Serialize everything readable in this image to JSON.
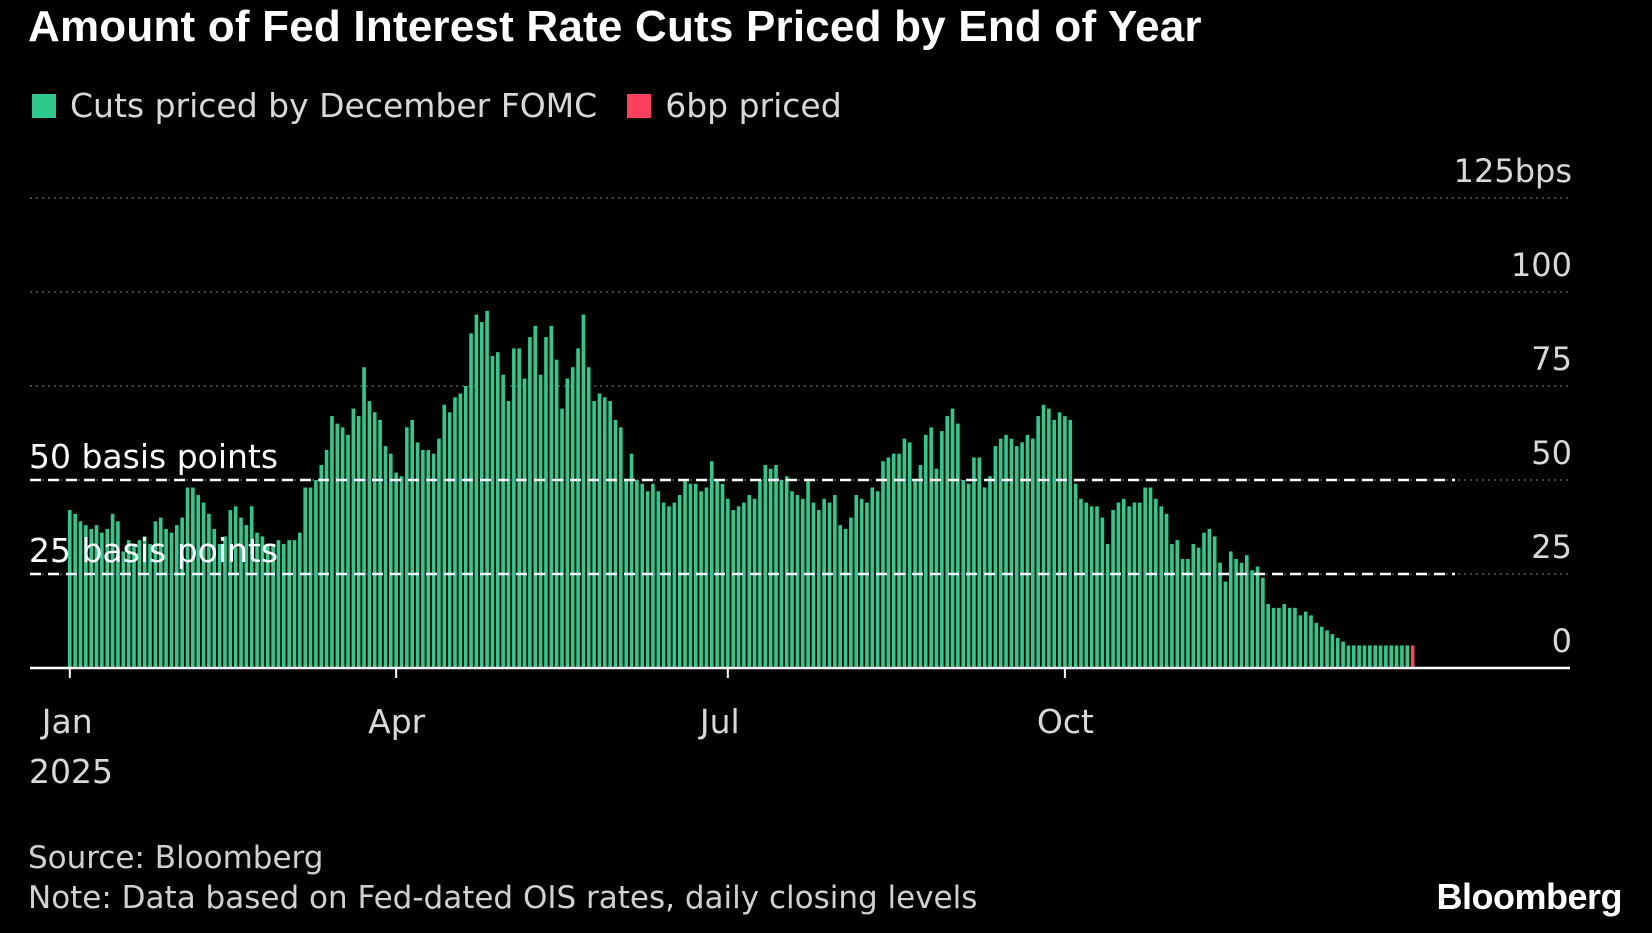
{
  "title": "Amount of Fed Interest Rate Cuts Priced by End of Year",
  "source": "Source: Bloomberg",
  "note": "Note: Data based on Fed-dated OIS rates, daily closing levels",
  "brand": "Bloomberg",
  "colors": {
    "background": "#000000",
    "bars": "#2ec98c",
    "highlight": "#ff3f5c",
    "gridline": "#6b6b6b",
    "reference_line": "#ffffff"
  },
  "chart_data": {
    "type": "bar",
    "title": "Amount of Fed Interest Rate Cuts Priced by End of Year",
    "legend": [
      {
        "name": "Cuts priced by December FOMC",
        "color": "#2ec98c"
      },
      {
        "name": "6bp priced",
        "color": "#ff3f5c"
      }
    ],
    "legend_position": "top-left",
    "x_unit": "trading day",
    "x_start": "2025-01-02",
    "x_ticks": [
      {
        "label": "Jan",
        "sublabel": "2025",
        "index": 0
      },
      {
        "label": "Apr",
        "index": 61
      },
      {
        "label": "Jul",
        "index": 123
      },
      {
        "label": "Oct",
        "index": 186
      }
    ],
    "ylim": [
      0,
      125
    ],
    "y_ticks": [
      {
        "value": 125,
        "label": "125bps"
      },
      {
        "value": 100,
        "label": "100"
      },
      {
        "value": 75,
        "label": "75"
      },
      {
        "value": 50,
        "label": "50"
      },
      {
        "value": 25,
        "label": "25"
      },
      {
        "value": 0,
        "label": "0"
      }
    ],
    "grid": true,
    "reference_lines": [
      {
        "value": 50,
        "label": "50 basis points"
      },
      {
        "value": 25,
        "label": "25 basis points"
      }
    ],
    "values": [
      42,
      41,
      39,
      38,
      37,
      38,
      36,
      37,
      41,
      39,
      31,
      34,
      33,
      34,
      35,
      33,
      39,
      40,
      37,
      36,
      38,
      40,
      48,
      48,
      46,
      44,
      41,
      37,
      33,
      35,
      42,
      43,
      40,
      38,
      43,
      36,
      35,
      33,
      33,
      34,
      33,
      34,
      34,
      36,
      48,
      48,
      50,
      54,
      58,
      67,
      65,
      64,
      62,
      69,
      67,
      80,
      71,
      68,
      66,
      59,
      57,
      52,
      51,
      64,
      66,
      60,
      58,
      58,
      57,
      61,
      70,
      68,
      72,
      73,
      75,
      89,
      94,
      92,
      95,
      83,
      84,
      78,
      71,
      85,
      85,
      77,
      88,
      91,
      78,
      88,
      91,
      82,
      69,
      77,
      80,
      85,
      94,
      80,
      71,
      73,
      72,
      71,
      66,
      64,
      50,
      57,
      50,
      49,
      47,
      49,
      47,
      44,
      43,
      44,
      46,
      50,
      49,
      49,
      47,
      48,
      55,
      50,
      49,
      45,
      42,
      43,
      44,
      46,
      45,
      50,
      54,
      53,
      54,
      50,
      51,
      47,
      46,
      45,
      50,
      44,
      42,
      45,
      44,
      46,
      38,
      37,
      40,
      46,
      45,
      44,
      48,
      47,
      55,
      56,
      57,
      57,
      61,
      60,
      50,
      54,
      62,
      64,
      53,
      63,
      67,
      69,
      65,
      50,
      49,
      56,
      56,
      48,
      51,
      59,
      61,
      62,
      61,
      59,
      60,
      62,
      61,
      67,
      70,
      69,
      66,
      68,
      67,
      66,
      49,
      45,
      44,
      43,
      43,
      40,
      33,
      42,
      44,
      45,
      43,
      44,
      44,
      48,
      48,
      45,
      43,
      41,
      33,
      34,
      29,
      29,
      33,
      32,
      36,
      37,
      35,
      28,
      23,
      31,
      29,
      28,
      30,
      26,
      27,
      24,
      17,
      16,
      16,
      17,
      16,
      16,
      14,
      15,
      14,
      12,
      11,
      10,
      9,
      8,
      7,
      6,
      6,
      6,
      6,
      6,
      6,
      6,
      6,
      6,
      6,
      6,
      6,
      6
    ]
  }
}
